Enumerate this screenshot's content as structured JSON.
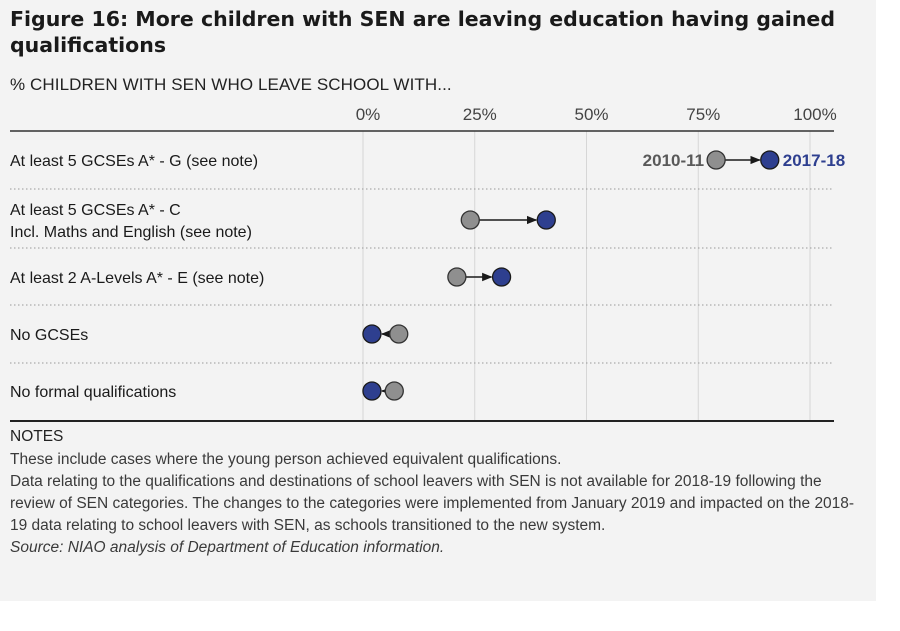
{
  "figure": {
    "title": "Figure 16:  More children with SEN are leaving education having gained qualifications",
    "subtitle": "% CHILDREN WITH SEN WHO LEAVE SCHOOL WITH..."
  },
  "chart_data": {
    "type": "dumbbell",
    "xlim": [
      0,
      100
    ],
    "x_tick_labels": [
      "0%",
      "25%",
      "50%",
      "75%",
      "100%"
    ],
    "x_ticks": [
      0,
      25,
      50,
      75,
      100
    ],
    "legend": {
      "from_label": "2010-11",
      "to_label": "2017-18"
    },
    "categories": [
      "At least 5 GCSEs A* - G (see note)",
      "At least 5 GCSEs A* - C\nIncl. Maths and English (see note)",
      "At least 2 A-Levels A* - E (see note)",
      "No GCSEs",
      "No formal qualifications"
    ],
    "series": [
      {
        "name": "2010-11",
        "values": [
          79,
          24,
          21,
          8,
          7
        ]
      },
      {
        "name": "2017-18",
        "values": [
          91,
          41,
          31,
          2,
          2
        ]
      }
    ],
    "colors": {
      "2010-11": "#8f8f8f",
      "2017-18": "#2e3f8f",
      "legend_from": "#595959",
      "legend_to": "#2e3f8f"
    }
  },
  "notes": {
    "heading": "NOTES",
    "lines": [
      "These include cases where the young person achieved equivalent qualifications.",
      "Data relating to the qualifications and destinations of school leavers with SEN is not available for 2018-19 following the review of SEN categories.  The changes to the categories were implemented from January 2019 and impacted on the 2018-19 data relating to school leavers with SEN, as schools transitioned to the new system."
    ],
    "source": "Source: NIAO analysis of Department of Education information."
  }
}
